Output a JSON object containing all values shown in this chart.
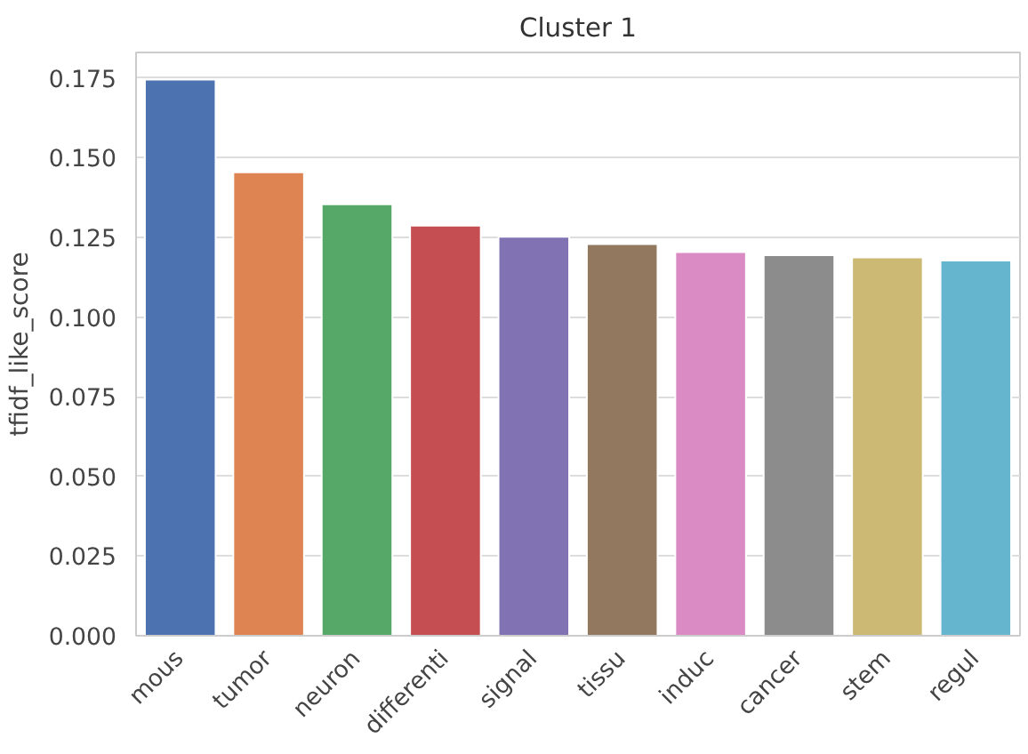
{
  "chart_data": {
    "type": "bar",
    "title": "Cluster 1",
    "ylabel": "tfidf_like_score",
    "categories": [
      "mous",
      "tumor",
      "neuron",
      "differenti",
      "signal",
      "tissu",
      "induc",
      "cancer",
      "stem",
      "regul"
    ],
    "values": [
      0.1745,
      0.1454,
      0.1354,
      0.1287,
      0.1252,
      0.1229,
      0.1204,
      0.1194,
      0.1187,
      0.1177
    ],
    "colors": [
      "#4c72b0",
      "#dd8452",
      "#55a868",
      "#c44e52",
      "#8172b3",
      "#937860",
      "#da8bc3",
      "#8c8c8c",
      "#ccb974",
      "#64b5cd"
    ],
    "ylim": [
      0,
      0.183
    ],
    "yticks": [
      {
        "value": 0,
        "label": "0.000"
      },
      {
        "value": 0.025,
        "label": "0.025"
      },
      {
        "value": 0.05,
        "label": "0.050"
      },
      {
        "value": 0.075,
        "label": "0.075"
      },
      {
        "value": 0.1,
        "label": "0.100"
      },
      {
        "value": 0.125,
        "label": "0.125"
      },
      {
        "value": 0.15,
        "label": "0.150"
      },
      {
        "value": 0.175,
        "label": "0.175"
      }
    ],
    "grid": "y"
  }
}
